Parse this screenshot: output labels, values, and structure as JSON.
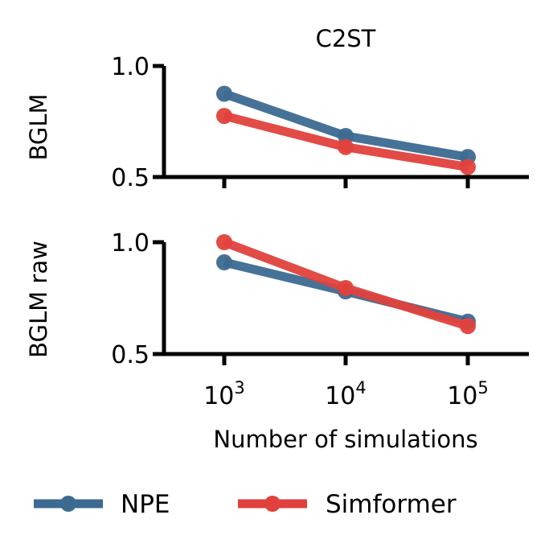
{
  "chart_data": {
    "type": "line",
    "title": "C2ST",
    "xlabel": "Number of simulations",
    "x": [
      1000,
      10000,
      100000
    ],
    "x_ticks": [
      {
        "base": "10",
        "exp": "3"
      },
      {
        "base": "10",
        "exp": "4"
      },
      {
        "base": "10",
        "exp": "5"
      }
    ],
    "xscale": "log",
    "legend": {
      "placement": "bottom",
      "entries": [
        "NPE",
        "Simformer"
      ]
    },
    "colors": {
      "NPE": "#3d6a91",
      "Simformer": "#e0413c"
    },
    "grid": false,
    "panels": [
      {
        "ylabel": "BGLM",
        "ylim": [
          0.5,
          1.0
        ],
        "yticks": [
          "0.5",
          "1.0"
        ],
        "series": [
          {
            "name": "NPE",
            "values": [
              0.875,
              0.685,
              0.59
            ]
          },
          {
            "name": "Simformer",
            "values": [
              0.775,
              0.635,
              0.545
            ]
          }
        ]
      },
      {
        "ylabel": "BGLM raw",
        "ylim": [
          0.5,
          1.0
        ],
        "yticks": [
          "0.5",
          "1.0"
        ],
        "series": [
          {
            "name": "NPE",
            "values": [
              0.91,
              0.78,
              0.645
            ]
          },
          {
            "name": "Simformer",
            "values": [
              1.0,
              0.795,
              0.625
            ]
          }
        ]
      }
    ]
  }
}
